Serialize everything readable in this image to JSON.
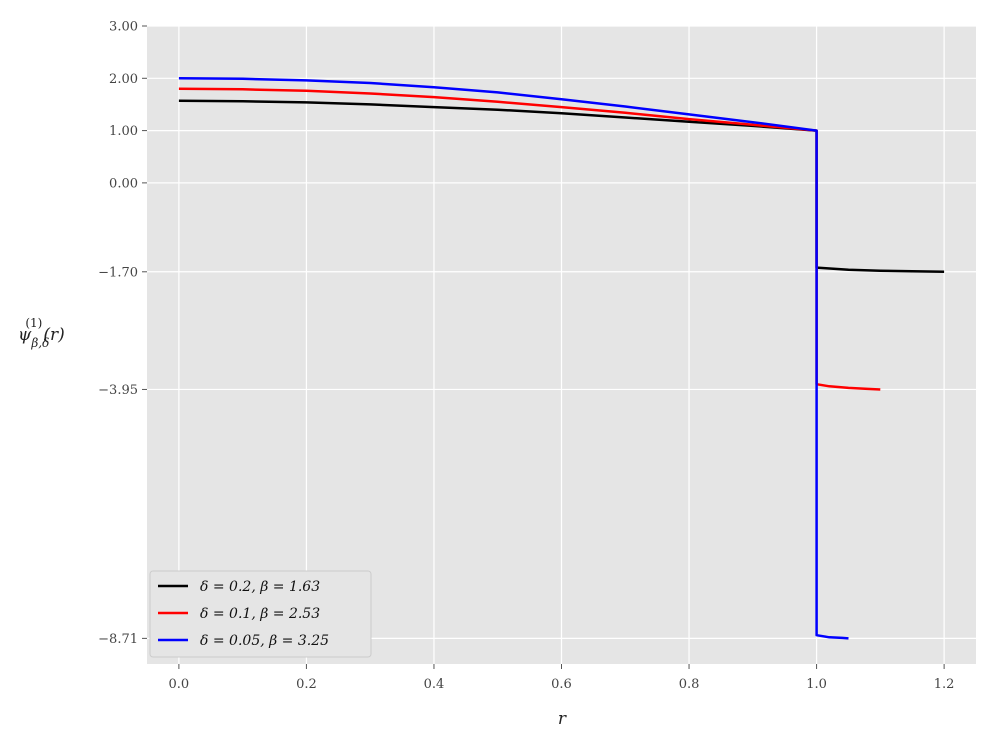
{
  "chart_data": {
    "type": "line",
    "xlabel": "r",
    "ylabel": {
      "base": "ψ",
      "superscript": "(1)",
      "subscript": "β,δ",
      "suffix": "(r)"
    },
    "xlim": [
      -0.05,
      1.25
    ],
    "ylim": [
      -9.2,
      3.0
    ],
    "xticks": [
      0.0,
      0.2,
      0.4,
      0.6,
      0.8,
      1.0,
      1.2
    ],
    "xtick_labels": [
      "0.0",
      "0.2",
      "0.4",
      "0.6",
      "0.8",
      "1.0",
      "1.2"
    ],
    "yticks": [
      3.0,
      2.0,
      1.0,
      0.0,
      -1.7,
      -3.95,
      -8.71
    ],
    "ytick_labels": [
      "3.00",
      "2.00",
      "1.00",
      "0.00",
      "−1.70",
      "−3.95",
      "−8.71"
    ],
    "grid": true,
    "legend_position": "lower-left",
    "series": [
      {
        "name": "δ = 0.2, β = 1.63",
        "color": "#000000",
        "x": [
          0.0,
          0.1,
          0.2,
          0.3,
          0.4,
          0.5,
          0.6,
          0.7,
          0.8,
          0.9,
          1.0,
          1.0,
          1.05,
          1.1,
          1.15,
          1.2
        ],
        "y": [
          1.57,
          1.56,
          1.54,
          1.5,
          1.45,
          1.4,
          1.33,
          1.25,
          1.17,
          1.09,
          1.0,
          -1.62,
          -1.66,
          -1.68,
          -1.69,
          -1.7
        ]
      },
      {
        "name": "δ = 0.1, β = 2.53",
        "color": "#ff0000",
        "x": [
          0.0,
          0.1,
          0.2,
          0.3,
          0.4,
          0.5,
          0.6,
          0.7,
          0.8,
          0.9,
          1.0,
          1.0,
          1.02,
          1.05,
          1.08,
          1.1
        ],
        "y": [
          1.8,
          1.79,
          1.76,
          1.71,
          1.64,
          1.55,
          1.45,
          1.34,
          1.22,
          1.11,
          1.0,
          -3.85,
          -3.89,
          -3.92,
          -3.94,
          -3.95
        ]
      },
      {
        "name": "δ = 0.05, β = 3.25",
        "color": "#0000ff",
        "x": [
          0.0,
          0.1,
          0.2,
          0.3,
          0.4,
          0.5,
          0.6,
          0.7,
          0.8,
          0.9,
          1.0,
          1.0,
          1.02,
          1.04,
          1.05
        ],
        "y": [
          2.0,
          1.99,
          1.96,
          1.91,
          1.83,
          1.73,
          1.6,
          1.46,
          1.31,
          1.16,
          1.0,
          -8.65,
          -8.69,
          -8.7,
          -8.71
        ]
      }
    ]
  }
}
